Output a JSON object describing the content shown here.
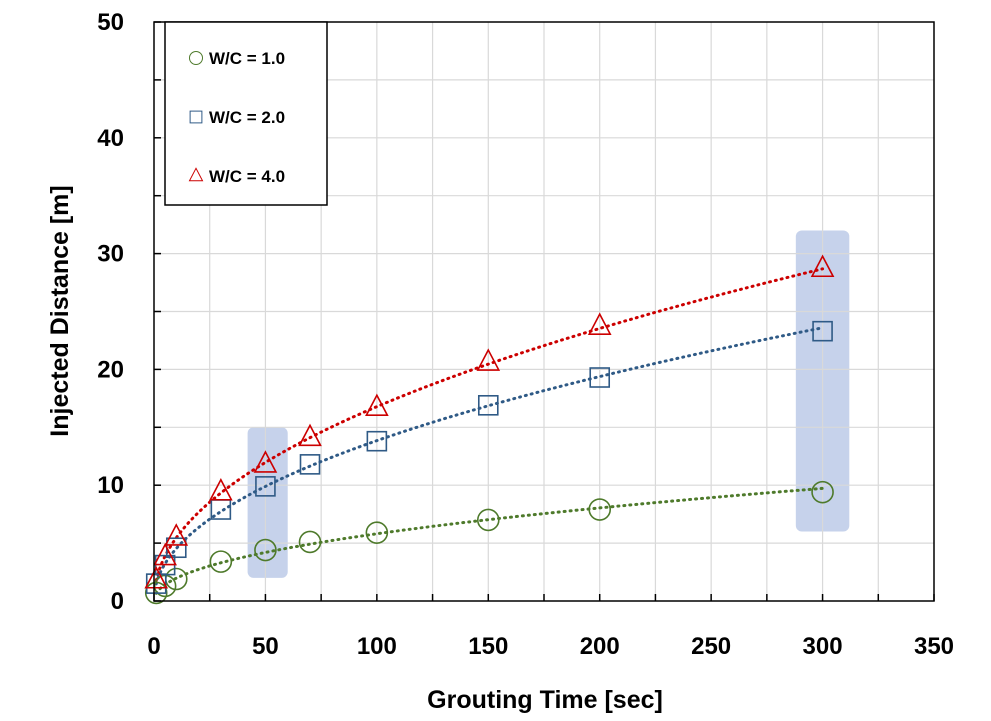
{
  "chart_data": {
    "type": "scatter",
    "title": "",
    "xlabel": "Grouting Time [sec]",
    "ylabel": "Injected Distance [m]",
    "xlim": [
      0,
      350
    ],
    "ylim": [
      0,
      50
    ],
    "x_ticks": [
      0,
      50,
      100,
      150,
      200,
      250,
      300,
      350
    ],
    "y_ticks": [
      0,
      10,
      20,
      30,
      40,
      50
    ],
    "grid": true,
    "legend_position": "top-left",
    "trendline": "dotted power fit per series",
    "series": [
      {
        "name": "W/C = 1.0",
        "marker": "circle",
        "color": "#4e7a2b",
        "x": [
          1,
          5,
          10,
          30,
          50,
          70,
          100,
          150,
          200,
          300
        ],
        "y": [
          0.7,
          1.3,
          1.9,
          3.4,
          4.4,
          5.1,
          5.9,
          7.0,
          7.9,
          9.4
        ]
      },
      {
        "name": "W/C = 2.0",
        "marker": "square",
        "color": "#2f5a86",
        "x": [
          1,
          5,
          10,
          30,
          50,
          70,
          100,
          150,
          200,
          300
        ],
        "y": [
          1.5,
          3.1,
          4.6,
          7.9,
          9.9,
          11.8,
          13.8,
          16.9,
          19.3,
          23.3
        ]
      },
      {
        "name": "W/C = 4.0",
        "marker": "triangle",
        "color": "#cc0000",
        "x": [
          1,
          5,
          10,
          30,
          50,
          70,
          100,
          150,
          200,
          300
        ],
        "y": [
          1.8,
          3.8,
          5.5,
          9.4,
          11.8,
          14.1,
          16.7,
          20.6,
          23.7,
          28.7
        ]
      }
    ],
    "highlight_bands": [
      {
        "x_range": [
          42,
          60
        ],
        "y_range": [
          2,
          15
        ],
        "color": "#aebfe3"
      },
      {
        "x_range": [
          288,
          312
        ],
        "y_range": [
          6,
          32
        ],
        "color": "#aebfe3"
      }
    ]
  }
}
